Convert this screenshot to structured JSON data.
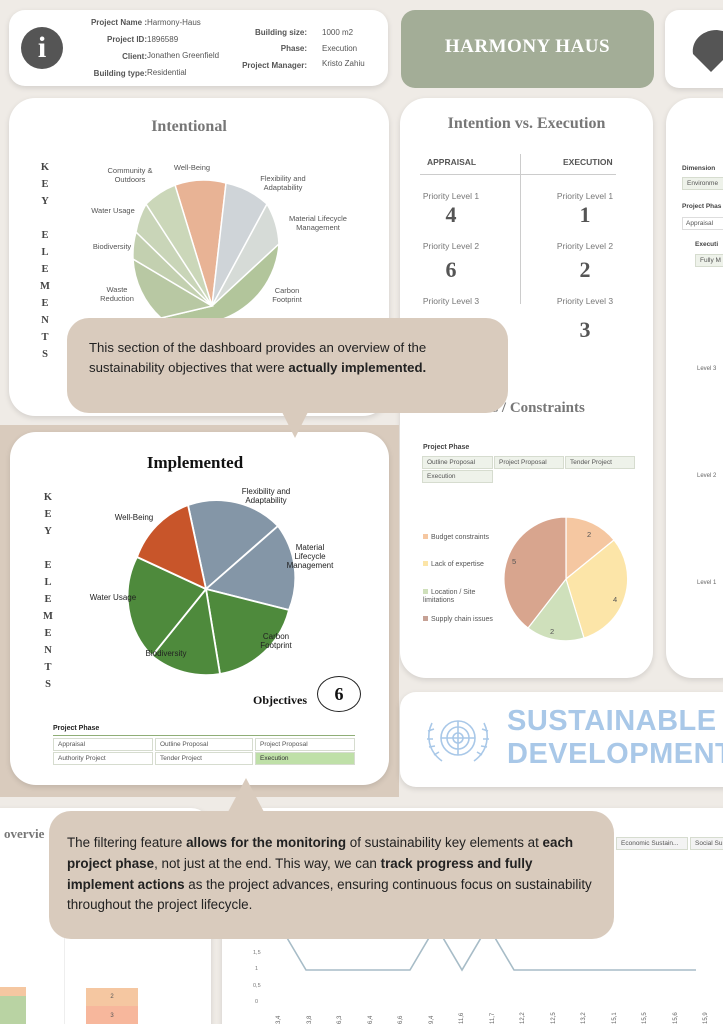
{
  "info": {
    "project_name_label": "Project Name :",
    "project_name": "Harmony-Haus",
    "project_id_label": "Project ID:",
    "project_id": "1896589",
    "client_label": "Client:",
    "client": "Jonathen Greenfield",
    "building_type_label": "Building type:",
    "building_type": "Residential",
    "building_size_label": "Building size:",
    "building_size": "1000 m2",
    "phase_label": "Phase:",
    "phase": "Execution",
    "pm_label": "Project Manager:",
    "pm": "Kristo Zahiu"
  },
  "banner_title": "HARMONY HAUS",
  "intentional": {
    "title": "Intentional",
    "key_elements": [
      "K",
      "E",
      "Y",
      "",
      "E",
      "L",
      "E",
      "M",
      "E",
      "N",
      "T",
      "S"
    ],
    "labels": {
      "community": "Community & Outdoors",
      "wellbeing": "Well-Being",
      "flexibility": "Flexibility and Adaptability",
      "material": "Material Lifecycle Management",
      "water": "Water Usage",
      "biodiversity": "Biodiversity",
      "waste": "Waste Reduction",
      "carbon": "Carbon Footprint"
    }
  },
  "comparison": {
    "title": "Intention vs. Execution",
    "appraisal_label": "APPRAISAL",
    "execution_label": "EXECUTION",
    "priority1": "Priority Level 1",
    "priority2": "Priority Level 2",
    "priority3": "Priority Level  3",
    "appraisal_values": [
      "4",
      "6",
      ""
    ],
    "execution_values": [
      "1",
      "2",
      "3"
    ]
  },
  "callout1": {
    "text_a": "This section of the dashboard provides an overview of the sustainability objectives that were ",
    "text_b": "actually implemented."
  },
  "implemented": {
    "title": "Implemented",
    "key_elements": [
      "K",
      "E",
      "Y",
      "",
      "E",
      "L",
      "E",
      "M",
      "E",
      "N",
      "T",
      "S"
    ],
    "labels": {
      "flexibility": "Flexibility and Adaptability",
      "material": "Material Lifecycle Management",
      "wellbeing": "Well-Being",
      "water": "Water Usage",
      "carbon": "Carbon Footprint",
      "biodiversity": "Biodiversity"
    },
    "objectives_label": "Objectives",
    "objectives_count": "6",
    "phase_title": "Project Phase",
    "phases": [
      "Appraisal",
      "Outline Proposal",
      "Project Proposal",
      "Authority Project",
      "Tender Project",
      "Execution"
    ]
  },
  "constraints": {
    "title": "Limitations / Constraints",
    "phase_title": "Project Phase",
    "phases": [
      "Outline Proposal",
      "Project Proposal",
      "Tender Project",
      "Execution"
    ],
    "legend": [
      "Budget constraints",
      "Lack of expertise",
      "Location / Site limitations",
      "Supply chain issues"
    ],
    "values": [
      "2",
      "4",
      "2",
      "5"
    ],
    "colors": {
      "budget": "#f5c7a1",
      "expertise": "#fce5a8",
      "location": "#cfe0bb",
      "supply": "#d8a58e"
    }
  },
  "right_panel": {
    "dimension_label": "Dimension",
    "dimension_value": "Environme",
    "phase_label": "Project Phas",
    "phase_value": "Appraisal",
    "execution_label": "Executi",
    "execution_value": "Fully M",
    "level3": "Level 3",
    "level2": "Level 2",
    "level1": "Level 1"
  },
  "sdg": {
    "line1": "SUSTAINABLE",
    "line2": "DEVELOPMENT"
  },
  "callout2": {
    "p1": "The filtering feature ",
    "b1": "allows for the monitoring",
    "p2": " of sustainability key elements at ",
    "b2": "each project phase",
    "p3": ", not just at the end. This way, we can ",
    "b3": "track progress and fully implement actions",
    "p4": " as the project advances, ensuring continuous focus on sustainability throughout the project lifecycle."
  },
  "bottom": {
    "overview_label": "overvie",
    "tab1": "Economic Sustain...",
    "tab2": "Social Su",
    "stack_labels": [
      "3",
      "2"
    ],
    "y_ticks": [
      "1,5",
      "1",
      "0,5",
      "0"
    ],
    "x_ticks": [
      "3,4",
      "3,8",
      "6,3",
      "6,4",
      "6,6",
      "9,4",
      "11,6",
      "11,7",
      "12,2",
      "12,5",
      "13,2",
      "15,1",
      "15,5",
      "15,6",
      "15,9"
    ]
  },
  "colors": {
    "sage": "#a3ad97",
    "wellbeing_impl": "#c8552a",
    "slate": "#8496a7",
    "green": "#4e8a3c",
    "bubble": "#d9cbbd"
  }
}
